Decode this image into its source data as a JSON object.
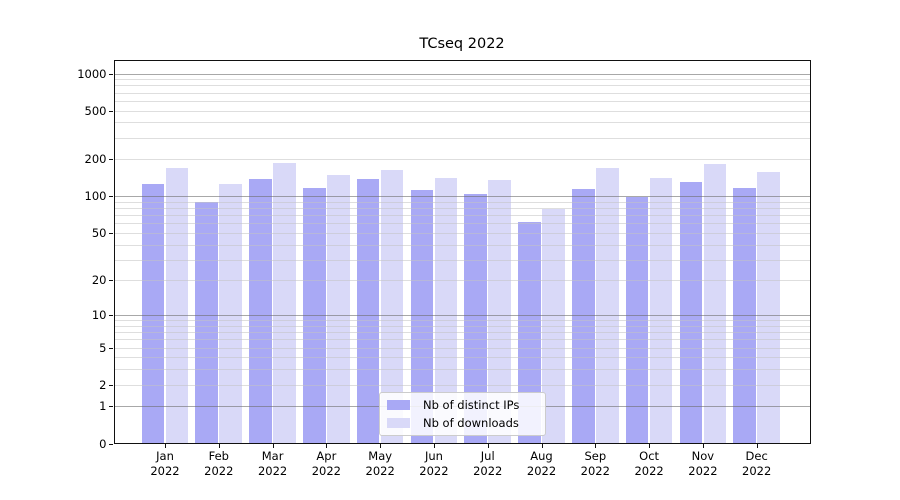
{
  "chart_data": {
    "type": "bar",
    "title": "TCseq 2022",
    "x_months": [
      "Jan",
      "Feb",
      "Mar",
      "Apr",
      "May",
      "Jun",
      "Jul",
      "Aug",
      "Sep",
      "Oct",
      "Nov",
      "Dec"
    ],
    "x_year": "2022",
    "series": [
      {
        "name": "Nb of distinct IPs",
        "color": "#a9a9f5",
        "values": [
          125,
          90,
          139,
          117,
          139,
          112,
          104,
          61,
          114,
          98,
          130,
          117
        ]
      },
      {
        "name": "Nb of downloads",
        "color": "#d9d9f8",
        "values": [
          169,
          125,
          186,
          150,
          165,
          141,
          137,
          79,
          169,
          140,
          185,
          158
        ]
      }
    ],
    "y_scale": "log10(value+1)",
    "y_tick_labels": [
      "1000",
      "500",
      "200",
      "100",
      "50",
      "20",
      "10",
      "5",
      "2",
      "1",
      "0"
    ],
    "y_tick_values": [
      1000,
      500,
      200,
      100,
      50,
      20,
      10,
      5,
      2,
      1,
      0
    ],
    "y_major_gridlines": [
      1,
      10,
      100,
      1000
    ],
    "y_minor_gridlines": [
      2,
      3,
      4,
      5,
      6,
      7,
      8,
      9,
      20,
      30,
      40,
      50,
      60,
      70,
      80,
      90,
      200,
      300,
      400,
      500,
      600,
      700,
      800,
      900
    ],
    "ylim": [
      0,
      1285
    ],
    "grid": "horizontal major+minor",
    "legend_position": "lower center",
    "colors": {
      "bar_distinct_ips": "#a9a9f5",
      "bar_downloads": "#d9d9f8",
      "major_grid": "#6e6e6e",
      "minor_grid": "#c3c3c3",
      "axis": "#111111",
      "text": "#000000",
      "background": "#ffffff"
    }
  }
}
